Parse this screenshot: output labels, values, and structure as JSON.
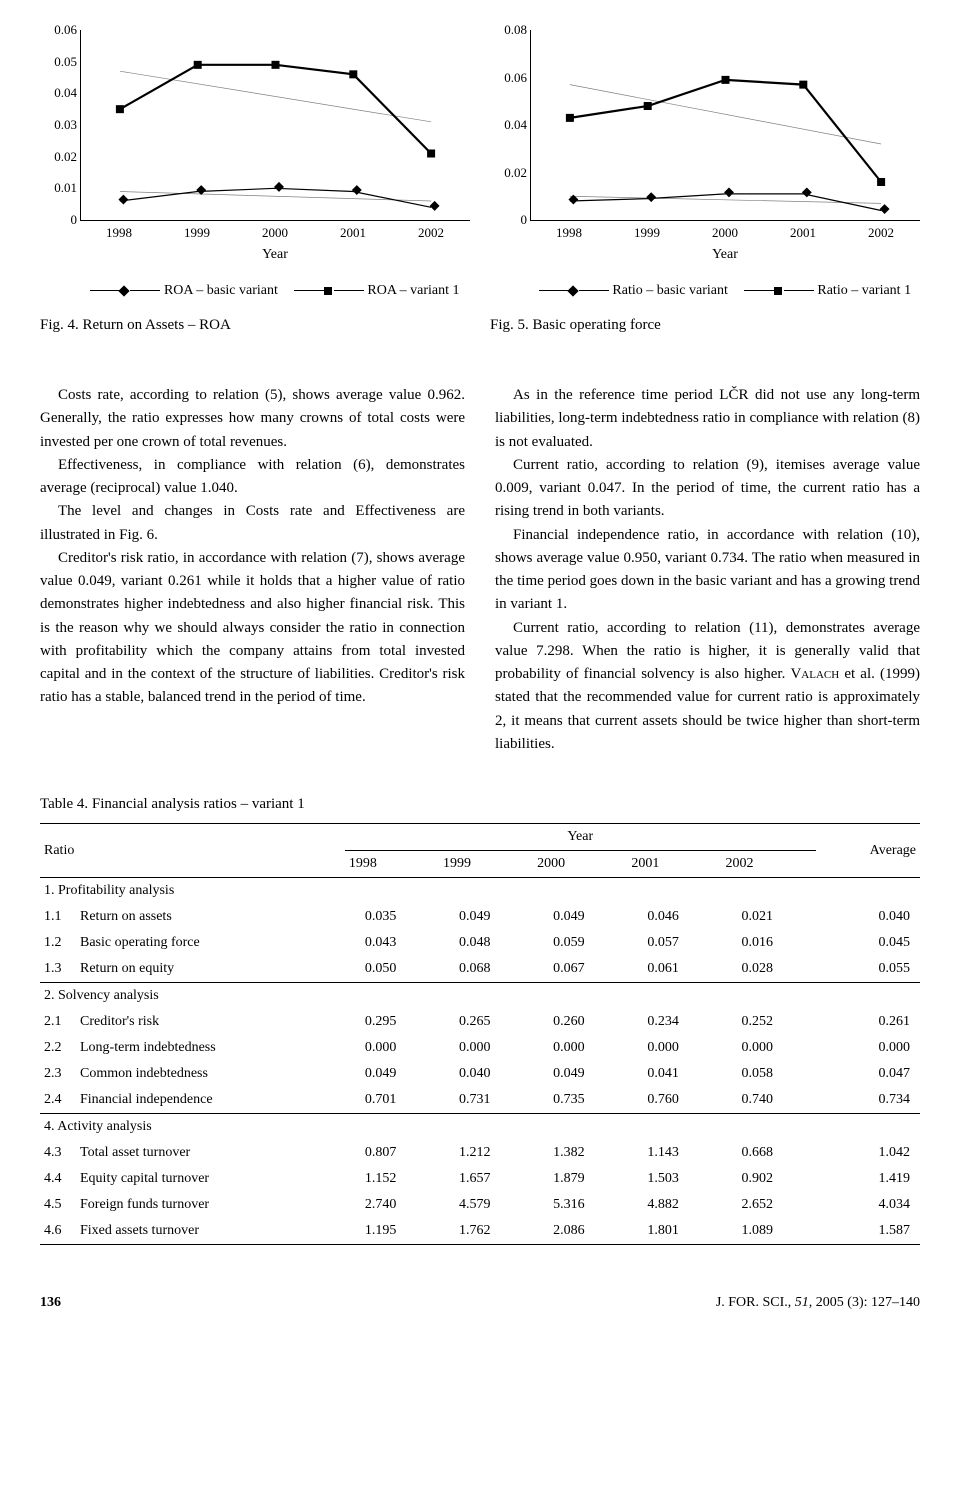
{
  "chart_left": {
    "type": "line",
    "ylim": [
      0,
      0.06
    ],
    "yticks": [
      "0",
      "0.01",
      "0.02",
      "0.03",
      "0.04",
      "0.05",
      "0.06"
    ],
    "x_categories": [
      "1998",
      "1999",
      "2000",
      "2001",
      "2002"
    ],
    "axis_title": "Year",
    "series": [
      {
        "name": "ROA – basic variant",
        "marker": "diamond",
        "color": "#000000",
        "line_width": 1.2,
        "values": [
          0.006,
          0.009,
          0.01,
          0.009,
          0.004
        ]
      },
      {
        "name": "ROA – variant 1",
        "marker": "square",
        "color": "#000000",
        "line_width": 2.2,
        "values": [
          0.035,
          0.049,
          0.049,
          0.046,
          0.021
        ]
      }
    ],
    "trend_lines": [
      {
        "color": "#808080",
        "width": 0.7,
        "y_start": 0.009,
        "y_end": 0.006
      },
      {
        "color": "#808080",
        "width": 0.7,
        "y_start": 0.047,
        "y_end": 0.031
      }
    ],
    "legend": [
      "ROA – basic variant",
      "ROA – variant 1"
    ],
    "caption": "Fig. 4. Return on Assets – ROA"
  },
  "chart_right": {
    "type": "line",
    "ylim": [
      0,
      0.08
    ],
    "yticks": [
      "0",
      "0.02",
      "0.04",
      "0.06",
      "0.08"
    ],
    "x_categories": [
      "1998",
      "1999",
      "2000",
      "2001",
      "2002"
    ],
    "axis_title": "Year",
    "series": [
      {
        "name": "Ratio – basic variant",
        "marker": "diamond",
        "color": "#000000",
        "line_width": 1.2,
        "values": [
          0.008,
          0.009,
          0.011,
          0.011,
          0.004
        ]
      },
      {
        "name": "Ratio – variant 1",
        "marker": "square",
        "color": "#000000",
        "line_width": 2.2,
        "values": [
          0.043,
          0.048,
          0.059,
          0.057,
          0.016
        ]
      }
    ],
    "trend_lines": [
      {
        "color": "#808080",
        "width": 0.7,
        "y_start": 0.01,
        "y_end": 0.007
      },
      {
        "color": "#808080",
        "width": 0.7,
        "y_start": 0.057,
        "y_end": 0.032
      }
    ],
    "legend": [
      "Ratio – basic variant",
      "Ratio – variant 1"
    ],
    "caption": "Fig. 5. Basic operating force"
  },
  "body": {
    "left": [
      "Costs rate, according to relation (5), shows average value 0.962. Generally, the ratio expresses how many crowns of total costs were invested per one crown of total revenues.",
      "Effectiveness, in compliance with relation (6), demonstrates average (reciprocal) value 1.040.",
      "The level and changes in Costs rate and Effectiveness are illustrated in Fig. 6.",
      "Creditor's risk ratio, in accordance with relation (7), shows average value 0.049, variant 0.261 while it holds that a higher value of ratio demonstrates higher indebtedness and also higher financial risk. This is the reason why we should always consider the ratio in connection with profitability which the company attains from total invested capital and in the context of the structure of liabilities. Creditor's risk ratio has a stable, balanced trend in the period of time."
    ],
    "right": [
      "As in the reference time period LČR did not use any long-term liabilities, long-term indebtedness ratio in compliance with relation (8) is not evaluated.",
      "Current ratio, according to relation (9), itemises average value 0.009, variant 0.047. In the period of time, the current ratio has a rising trend in both variants.",
      "Financial independence ratio, in accordance with relation (10), shows average value 0.950, variant 0.734. The ratio when measured in the time period goes down in the basic variant and has a growing trend in variant 1.",
      "Current ratio, according to relation (11), demonstrates average value 7.298. When the ratio is higher, it is generally valid that probability of financial solvency is also higher. <span class=\"sc\">Valach</span> et al. (1999) stated that the recommended value for current ratio is approximately 2, it means that current assets should be twice higher than short-term liabilities."
    ]
  },
  "table": {
    "caption": "Table 4. Financial analysis ratios – variant 1",
    "header_ratio": "Ratio",
    "header_year": "Year",
    "header_avg": "Average",
    "years": [
      "1998",
      "1999",
      "2000",
      "2001",
      "2002"
    ],
    "sections": [
      {
        "title": "1. Profitability analysis",
        "rows": [
          {
            "id": "1.1",
            "name": "Return on assets",
            "vals": [
              "0.035",
              "0.049",
              "0.049",
              "0.046",
              "0.021"
            ],
            "avg": "0.040"
          },
          {
            "id": "1.2",
            "name": "Basic operating force",
            "vals": [
              "0.043",
              "0.048",
              "0.059",
              "0.057",
              "0.016"
            ],
            "avg": "0.045"
          },
          {
            "id": "1.3",
            "name": "Return on equity",
            "vals": [
              "0.050",
              "0.068",
              "0.067",
              "0.061",
              "0.028"
            ],
            "avg": "0.055"
          }
        ]
      },
      {
        "title": "2. Solvency analysis",
        "rows": [
          {
            "id": "2.1",
            "name": "Creditor's risk",
            "vals": [
              "0.295",
              "0.265",
              "0.260",
              "0.234",
              "0.252"
            ],
            "avg": "0.261"
          },
          {
            "id": "2.2",
            "name": "Long-term indebtedness",
            "vals": [
              "0.000",
              "0.000",
              "0.000",
              "0.000",
              "0.000"
            ],
            "avg": "0.000"
          },
          {
            "id": "2.3",
            "name": "Common indebtedness",
            "vals": [
              "0.049",
              "0.040",
              "0.049",
              "0.041",
              "0.058"
            ],
            "avg": "0.047"
          },
          {
            "id": "2.4",
            "name": "Financial independence",
            "vals": [
              "0.701",
              "0.731",
              "0.735",
              "0.760",
              "0.740"
            ],
            "avg": "0.734"
          }
        ]
      },
      {
        "title": "4. Activity analysis",
        "rows": [
          {
            "id": "4.3",
            "name": "Total asset turnover",
            "vals": [
              "0.807",
              "1.212",
              "1.382",
              "1.143",
              "0.668"
            ],
            "avg": "1.042"
          },
          {
            "id": "4.4",
            "name": "Equity capital turnover",
            "vals": [
              "1.152",
              "1.657",
              "1.879",
              "1.503",
              "0.902"
            ],
            "avg": "1.419"
          },
          {
            "id": "4.5",
            "name": "Foreign funds turnover",
            "vals": [
              "2.740",
              "4.579",
              "5.316",
              "4.882",
              "2.652"
            ],
            "avg": "4.034"
          },
          {
            "id": "4.6",
            "name": "Fixed assets turnover",
            "vals": [
              "1.195",
              "1.762",
              "2.086",
              "1.801",
              "1.089"
            ],
            "avg": "1.587"
          }
        ]
      }
    ]
  },
  "footer": {
    "page": "136",
    "citation": "J. FOR. SCI., <i>51</i>, 2005 (3): 127–140"
  }
}
